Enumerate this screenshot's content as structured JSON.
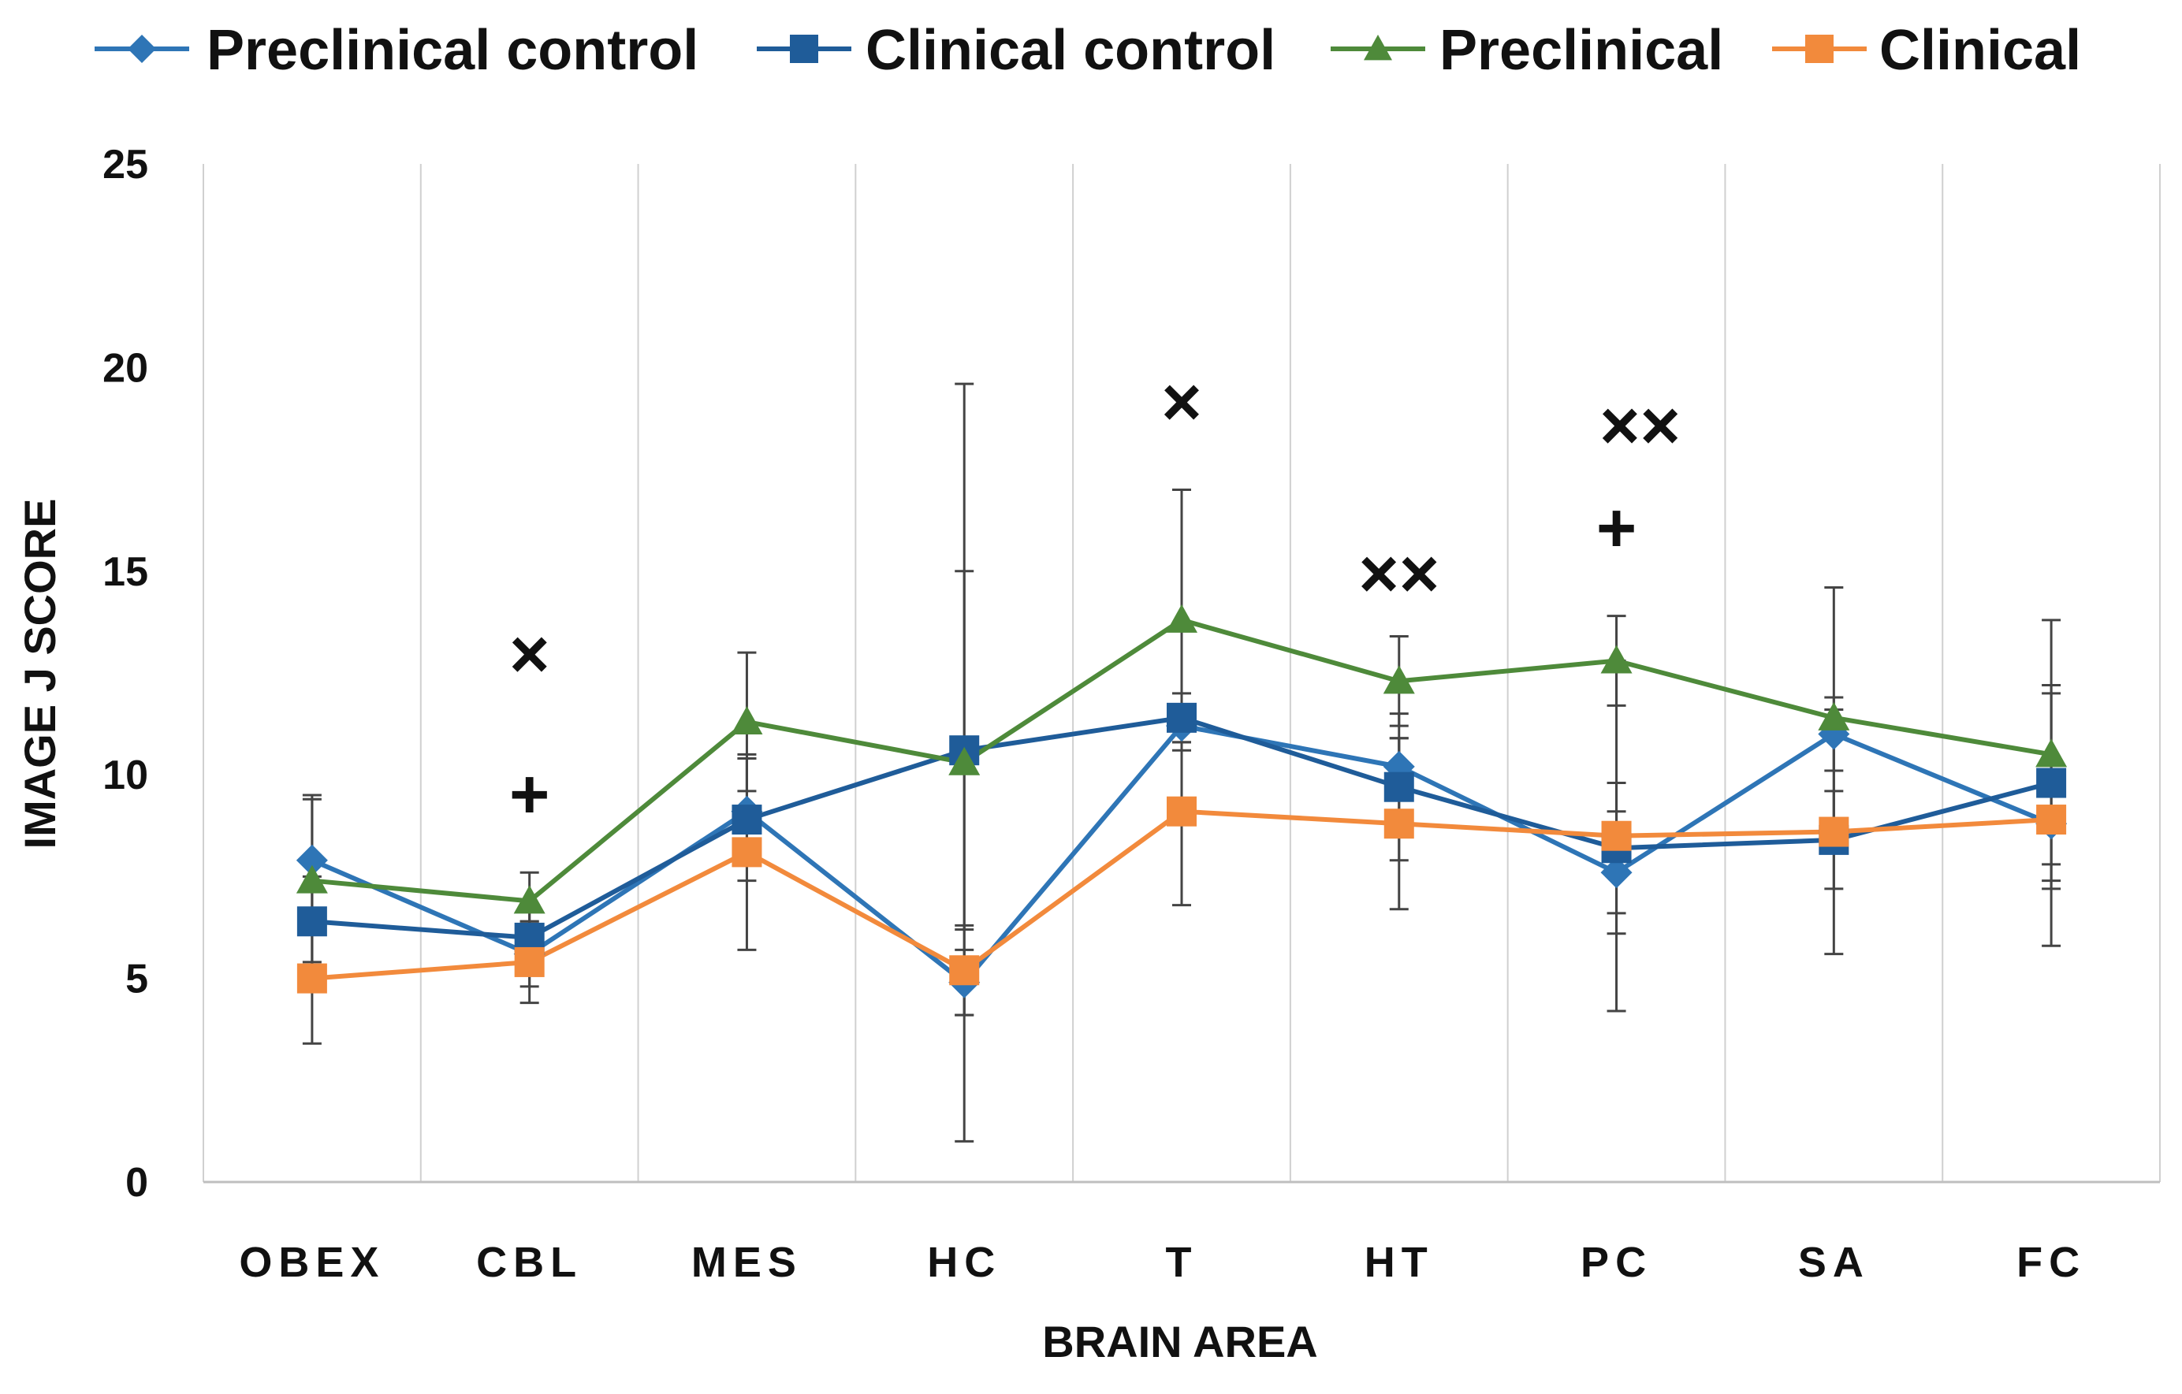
{
  "chart_data": {
    "type": "line",
    "xlabel": "BRAIN AREA",
    "ylabel": "IMAGE J SCORE",
    "ylim": [
      0,
      25
    ],
    "yticks": [
      0,
      5,
      10,
      15,
      20,
      25
    ],
    "grid": "vertical",
    "legend_position": "top",
    "categories": [
      "OBEX",
      "CBL",
      "MES",
      "HC",
      "T",
      "HT",
      "PC",
      "SA",
      "FC"
    ],
    "series": [
      {
        "name": "Preclinical control",
        "color": "#2E75B6",
        "marker": "diamond",
        "values": [
          7.9,
          5.6,
          9.1,
          4.9,
          11.2,
          10.2,
          7.6,
          11.0,
          8.8
        ],
        "errors": [
          1.6,
          0.8,
          1.3,
          0.8,
          0.4,
          0.7,
          1.5,
          0.9,
          1.0
        ]
      },
      {
        "name": "Clinical control",
        "color": "#1F5C99",
        "marker": "square",
        "values": [
          6.4,
          6.0,
          8.9,
          10.6,
          11.4,
          9.7,
          8.2,
          8.4,
          9.8
        ],
        "errors": [
          1.1,
          0.7,
          1.5,
          4.4,
          0.6,
          1.8,
          1.6,
          1.2,
          2.4
        ]
      },
      {
        "name": "Preclinical",
        "color": "#4E8A3A",
        "marker": "triangle",
        "values": [
          7.4,
          6.9,
          11.3,
          10.3,
          13.8,
          12.3,
          12.8,
          11.4,
          10.5
        ],
        "errors": [
          2.0,
          0.7,
          1.7,
          9.3,
          3.2,
          1.1,
          1.1,
          3.2,
          3.3
        ]
      },
      {
        "name": "Clinical",
        "color": "#F28A3C",
        "marker": "square",
        "values": [
          5.0,
          5.4,
          8.1,
          5.2,
          9.1,
          8.8,
          8.5,
          8.6,
          8.9
        ],
        "errors": [
          1.6,
          1.0,
          2.4,
          1.1,
          2.3,
          2.1,
          4.3,
          3.0,
          3.1
        ]
      }
    ],
    "annotations": [
      {
        "category": "CBL",
        "symbols": [
          "×",
          "+"
        ]
      },
      {
        "category": "T",
        "symbols": [
          "×"
        ]
      },
      {
        "category": "HT",
        "symbols": [
          "××"
        ]
      },
      {
        "category": "PC",
        "symbols": [
          "××",
          "+"
        ]
      }
    ]
  }
}
